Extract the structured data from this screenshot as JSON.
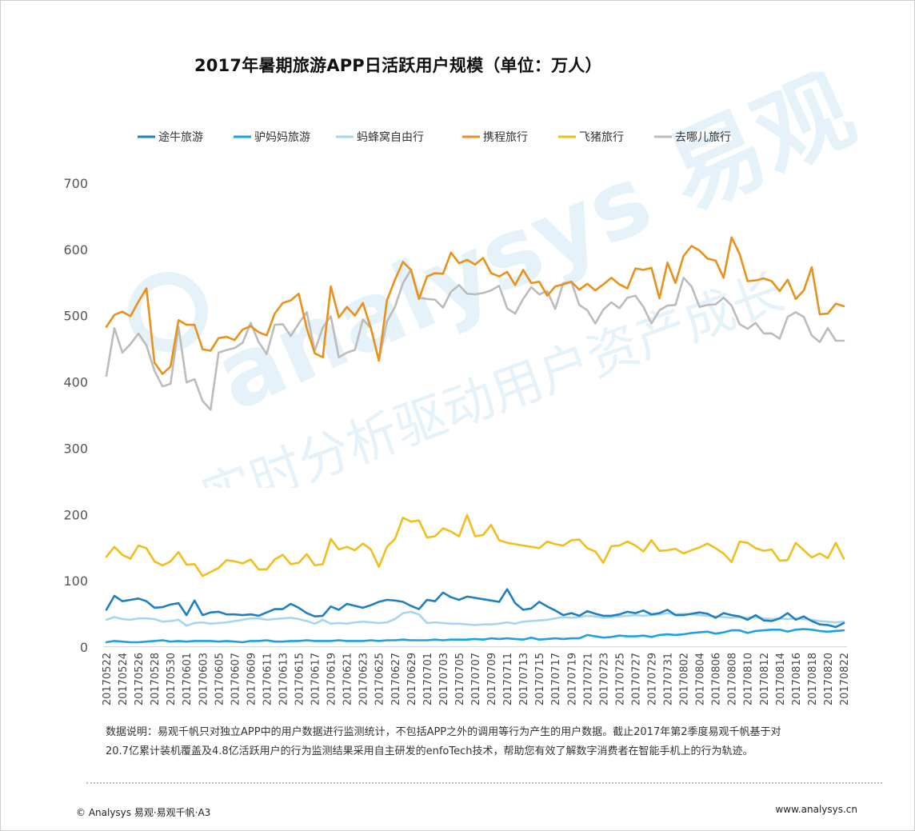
{
  "page": {
    "title": "2017年暑期旅游APP日活跃用户规模（单位：万人）",
    "note_line1": "数据说明：易观千帆只对独立APP中的用户数据进行监测统计，不包括APP之外的调用等行为产生的用户数据。截止2017年第2季度易观千帆基于对",
    "note_line2": "20.7亿累计装机覆盖及4.8亿活跃用户的行为监测结果采用自主研发的enfoTech技术，帮助您有效了解数字消费者在智能手机上的行为轨迹。",
    "footer_left": "© Analysys 易观·易观千帆·A3",
    "footer_right": "www.analysys.cn"
  },
  "chart_data": {
    "type": "line",
    "title": "2017年暑期旅游APP日活跃用户规模（单位：万人）",
    "xlabel": "",
    "ylabel": "",
    "ylim": [
      0,
      700
    ],
    "yticks": [
      0,
      100,
      200,
      300,
      400,
      500,
      600,
      700
    ],
    "grid": false,
    "legend_position": "top",
    "x": [
      "20170522",
      "20170523",
      "20170524",
      "20170525",
      "20170526",
      "20170527",
      "20170528",
      "20170529",
      "20170530",
      "20170531",
      "20170601",
      "20170602",
      "20170603",
      "20170604",
      "20170605",
      "20170606",
      "20170607",
      "20170608",
      "20170609",
      "20170610",
      "20170611",
      "20170612",
      "20170613",
      "20170614",
      "20170615",
      "20170616",
      "20170617",
      "20170618",
      "20170619",
      "20170620",
      "20170621",
      "20170622",
      "20170623",
      "20170624",
      "20170625",
      "20170626",
      "20170627",
      "20170628",
      "20170629",
      "20170630",
      "20170701",
      "20170702",
      "20170703",
      "20170704",
      "20170705",
      "20170706",
      "20170707",
      "20170708",
      "20170709",
      "20170710",
      "20170711",
      "20170712",
      "20170713",
      "20170714",
      "20170715",
      "20170716",
      "20170717",
      "20170718",
      "20170719",
      "20170720",
      "20170721",
      "20170722",
      "20170723",
      "20170724",
      "20170725",
      "20170726",
      "20170727",
      "20170728",
      "20170729",
      "20170730",
      "20170731",
      "20170801",
      "20170802",
      "20170803",
      "20170804",
      "20170805",
      "20170806",
      "20170807",
      "20170808",
      "20170809",
      "20170810",
      "20170811",
      "20170812",
      "20170813",
      "20170814",
      "20170815",
      "20170816",
      "20170817",
      "20170818",
      "20170819",
      "20170820",
      "20170821",
      "20170822"
    ],
    "xtick_labels": [
      "20170522",
      "20170524",
      "20170526",
      "20170528",
      "20170530",
      "20170601",
      "20170603",
      "20170605",
      "20170607",
      "20170609",
      "20170611",
      "20170613",
      "20170615",
      "20170617",
      "20170619",
      "20170621",
      "20170623",
      "20170625",
      "20170627",
      "20170629",
      "20170701",
      "20170703",
      "20170705",
      "20170707",
      "20170709",
      "20170711",
      "20170713",
      "20170715",
      "20170717",
      "20170719",
      "20170721",
      "20170723",
      "20170725",
      "20170727",
      "20170729",
      "20170731",
      "20170802",
      "20170804",
      "20170806",
      "20170808",
      "20170810",
      "20170812",
      "20170814",
      "20170816",
      "20170818",
      "20170820",
      "20170822"
    ],
    "series": [
      {
        "name": "途牛旅游",
        "color": "#1f7fbf",
        "values": [
          55,
          76,
          68,
          70,
          72,
          68,
          58,
          59,
          63,
          65,
          47,
          69,
          47,
          51,
          52,
          48,
          48,
          47,
          48,
          46,
          51,
          56,
          56,
          64,
          58,
          50,
          45,
          46,
          60,
          55,
          64,
          61,
          58,
          62,
          67,
          70,
          69,
          67,
          61,
          56,
          70,
          68,
          81,
          74,
          70,
          75,
          73,
          71,
          69,
          67,
          86,
          65,
          55,
          57,
          67,
          60,
          54,
          47,
          50,
          46,
          53,
          49,
          46,
          46,
          48,
          52,
          50,
          54,
          48,
          50,
          55,
          47,
          47,
          49,
          51,
          49,
          43,
          50,
          47,
          45,
          40,
          47,
          39,
          38,
          42,
          50,
          40,
          45,
          38,
          33,
          32,
          29,
          35
        ]
      },
      {
        "name": "驴妈妈旅游",
        "color": "#1ea0e0",
        "values": [
          6,
          8,
          7,
          6,
          6,
          7,
          8,
          9,
          7,
          8,
          7,
          8,
          8,
          8,
          7,
          8,
          7,
          6,
          8,
          8,
          9,
          7,
          7,
          8,
          8,
          9,
          8,
          8,
          8,
          9,
          8,
          8,
          8,
          9,
          8,
          9,
          9,
          10,
          9,
          9,
          9,
          10,
          9,
          10,
          10,
          10,
          11,
          10,
          12,
          11,
          12,
          11,
          10,
          13,
          10,
          11,
          12,
          11,
          12,
          12,
          17,
          15,
          13,
          14,
          16,
          15,
          15,
          16,
          14,
          17,
          18,
          17,
          18,
          20,
          21,
          22,
          19,
          21,
          24,
          24,
          20,
          23,
          24,
          25,
          25,
          22,
          25,
          26,
          25,
          23,
          22,
          23,
          24
        ]
      },
      {
        "name": "蚂蜂窝自由行",
        "color": "#a8d4ee",
        "values": [
          40,
          44,
          41,
          40,
          42,
          42,
          41,
          37,
          38,
          40,
          31,
          35,
          36,
          34,
          35,
          36,
          38,
          40,
          42,
          42,
          40,
          41,
          42,
          43,
          41,
          38,
          34,
          40,
          34,
          35,
          34,
          36,
          37,
          36,
          35,
          36,
          41,
          50,
          52,
          48,
          35,
          36,
          35,
          34,
          34,
          33,
          32,
          33,
          33,
          34,
          36,
          34,
          37,
          38,
          39,
          40,
          42,
          44,
          43,
          44,
          46,
          45,
          43,
          44,
          45,
          46,
          47,
          46,
          47,
          48,
          50,
          48,
          49,
          48,
          47,
          46,
          45,
          44,
          43,
          44,
          43,
          44,
          42,
          41,
          42,
          41,
          42,
          41,
          40,
          38,
          37,
          36,
          37
        ]
      },
      {
        "name": "携程旅行",
        "color": "#e8921c",
        "values": [
          482,
          500,
          505,
          498,
          520,
          540,
          428,
          411,
          422,
          492,
          485,
          485,
          448,
          446,
          465,
          467,
          462,
          478,
          483,
          474,
          469,
          502,
          518,
          522,
          532,
          480,
          442,
          436,
          543,
          496,
          512,
          499,
          518,
          480,
          431,
          522,
          553,
          580,
          568,
          524,
          558,
          563,
          562,
          594,
          578,
          583,
          576,
          586,
          563,
          558,
          565,
          545,
          568,
          548,
          550,
          529,
          543,
          546,
          550,
          538,
          547,
          537,
          546,
          556,
          546,
          540,
          570,
          568,
          571,
          525,
          579,
          548,
          589,
          604,
          597,
          585,
          582,
          556,
          617,
          592,
          551,
          552,
          555,
          551,
          536,
          553,
          524,
          537,
          572,
          501,
          502,
          517,
          513
        ]
      },
      {
        "name": "飞猪旅行",
        "color": "#f0bf1e",
        "values": [
          135,
          150,
          138,
          132,
          152,
          148,
          128,
          122,
          128,
          142,
          123,
          124,
          106,
          112,
          118,
          130,
          128,
          125,
          131,
          116,
          116,
          131,
          138,
          124,
          126,
          139,
          122,
          124,
          162,
          146,
          150,
          145,
          155,
          146,
          120,
          150,
          162,
          194,
          188,
          190,
          164,
          166,
          178,
          173,
          166,
          198,
          166,
          168,
          183,
          160,
          156,
          154,
          152,
          150,
          148,
          158,
          154,
          152,
          160,
          161,
          148,
          143,
          126,
          151,
          152,
          158,
          152,
          143,
          160,
          144,
          145,
          147,
          140,
          145,
          149,
          155,
          148,
          140,
          127,
          158,
          156,
          148,
          144,
          146,
          129,
          130,
          156,
          145,
          134,
          140,
          133,
          156,
          132
        ]
      },
      {
        "name": "去哪儿旅行",
        "color": "#bcbcbc",
        "values": [
          408,
          480,
          443,
          456,
          472,
          454,
          416,
          392,
          396,
          482,
          398,
          403,
          370,
          357,
          443,
          447,
          450,
          458,
          488,
          459,
          441,
          485,
          486,
          468,
          487,
          504,
          446,
          481,
          498,
          436,
          443,
          447,
          493,
          480,
          432,
          490,
          512,
          548,
          568,
          526,
          524,
          523,
          511,
          535,
          545,
          532,
          531,
          533,
          537,
          544,
          510,
          502,
          524,
          542,
          531,
          536,
          509,
          548,
          550,
          515,
          507,
          487,
          508,
          519,
          510,
          526,
          529,
          512,
          487,
          507,
          514,
          515,
          556,
          543,
          512,
          515,
          516,
          526,
          514,
          486,
          479,
          488,
          472,
          472,
          464,
          497,
          504,
          497,
          469,
          459,
          480,
          461,
          461
        ]
      }
    ]
  }
}
